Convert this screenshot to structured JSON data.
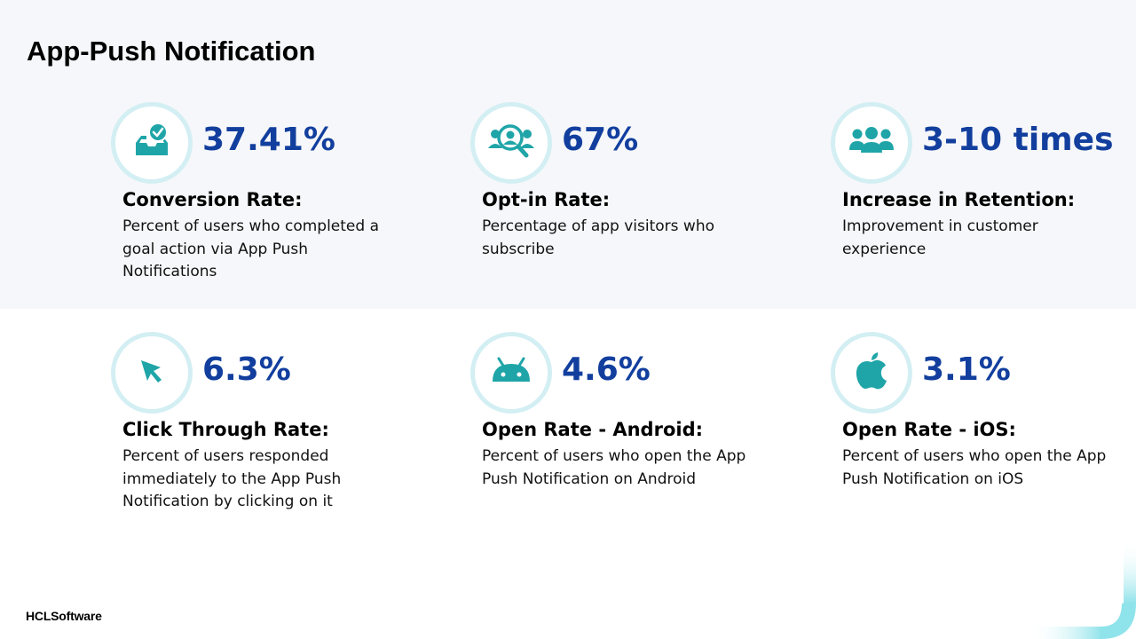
{
  "title": "App-Push Notification",
  "brand": "HCLSoftware",
  "colors": {
    "accent": "#123f9e",
    "icon": "#1fa5a8",
    "ring": "#d3eff3",
    "band": "#f6f7fa"
  },
  "stats": [
    {
      "icon": "inbox-check-icon",
      "value": "37.41%",
      "label": "Conversion Rate:",
      "description": "Percent of users who completed a goal action via App Push Notifications"
    },
    {
      "icon": "user-search-icon",
      "value": "67%",
      "label": "Opt-in Rate:",
      "description": "Percentage of app visitors who subscribe"
    },
    {
      "icon": "users-group-icon",
      "value": "3-10 times",
      "label": "Increase in Retention:",
      "description": "Improvement in customer experience"
    },
    {
      "icon": "cursor-arrow-icon",
      "value": "6.3%",
      "label": "Click Through Rate:",
      "description": "Percent of users responded immediately to the App Push Notification by clicking on it"
    },
    {
      "icon": "android-icon",
      "value": "4.6%",
      "label": "Open Rate - Android:",
      "description": "Percent of users who open the App Push Notification on Android"
    },
    {
      "icon": "apple-icon",
      "value": "3.1%",
      "label": "Open Rate - iOS:",
      "description": "Percent of users who open the App Push Notification on iOS"
    }
  ]
}
